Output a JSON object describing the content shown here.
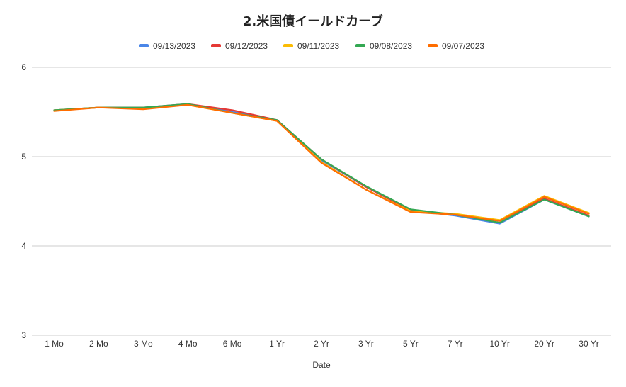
{
  "chart_data": {
    "type": "line",
    "title": "2.米国債イールドカーブ",
    "xlabel": "Date",
    "ylabel": "",
    "ylim": [
      3,
      6
    ],
    "yticks": [
      3,
      4,
      5,
      6
    ],
    "grid": true,
    "legend_position": "top",
    "categories": [
      "1 Mo",
      "2 Mo",
      "3 Mo",
      "4 Mo",
      "6 Mo",
      "1 Yr",
      "2 Yr",
      "3 Yr",
      "5 Yr",
      "7 Yr",
      "10 Yr",
      "20 Yr",
      "30 Yr"
    ],
    "series": [
      {
        "name": "09/13/2023",
        "color": "#4a86e8",
        "values": [
          5.52,
          5.55,
          5.55,
          5.59,
          5.5,
          5.41,
          4.96,
          4.66,
          4.4,
          4.34,
          4.25,
          4.52,
          4.33
        ]
      },
      {
        "name": "09/12/2023",
        "color": "#e53935",
        "values": [
          5.52,
          5.55,
          5.55,
          5.59,
          5.52,
          5.41,
          4.97,
          4.66,
          4.4,
          4.35,
          4.28,
          4.53,
          4.34
        ]
      },
      {
        "name": "09/11/2023",
        "color": "#fbbc04",
        "values": [
          5.52,
          5.55,
          5.54,
          5.58,
          5.49,
          5.4,
          4.94,
          4.63,
          4.39,
          4.36,
          4.29,
          4.56,
          4.37
        ]
      },
      {
        "name": "09/08/2023",
        "color": "#34a853",
        "values": [
          5.52,
          5.55,
          5.55,
          5.59,
          5.49,
          5.41,
          4.97,
          4.67,
          4.41,
          4.35,
          4.26,
          4.52,
          4.33
        ]
      },
      {
        "name": "09/07/2023",
        "color": "#ff6d00",
        "values": [
          5.51,
          5.55,
          5.53,
          5.58,
          5.49,
          5.4,
          4.93,
          4.63,
          4.38,
          4.35,
          4.28,
          4.55,
          4.36
        ]
      }
    ]
  }
}
